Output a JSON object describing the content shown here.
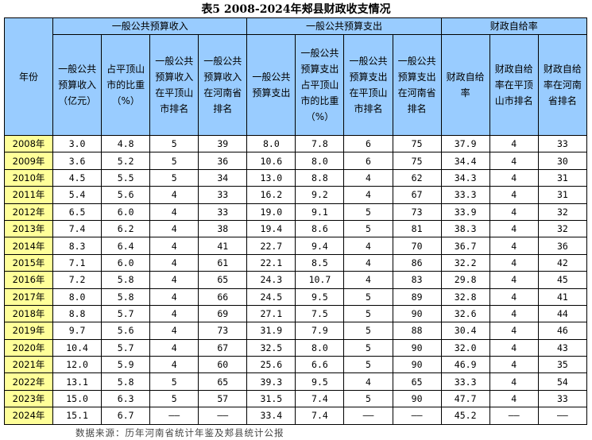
{
  "title": "表5 2008-2024年郏县财政收支情况",
  "header": {
    "year": "年份",
    "groups": [
      "一般公共预算收入",
      "一般公共预算支出",
      "财政自给率"
    ],
    "columns": [
      "一般公共预算收入（亿元）",
      "占平顶山市的比重（%）",
      "一般公共预算收入在平顶山市排名",
      "一般公共预算收入在河南省排名",
      "一般公共预算支出",
      "一般公共预算支出占平顶山市的比重（%）",
      "一般公共预算支出在平顶山市排名",
      "一般公共预算支出在河南省排名",
      "财政自给率",
      "财政自给率在平顶山市排名",
      "财政自给率在河南省排名"
    ]
  },
  "rows": [
    [
      "2008年",
      "3.0",
      "4.8",
      "5",
      "39",
      "8.0",
      "7.8",
      "6",
      "75",
      "37.9",
      "4",
      "33"
    ],
    [
      "2009年",
      "3.6",
      "5.2",
      "5",
      "36",
      "10.6",
      "8.0",
      "6",
      "75",
      "34.4",
      "4",
      "30"
    ],
    [
      "2010年",
      "4.5",
      "5.5",
      "5",
      "34",
      "13.0",
      "8.8",
      "4",
      "62",
      "34.3",
      "4",
      "31"
    ],
    [
      "2011年",
      "5.4",
      "5.6",
      "4",
      "33",
      "16.2",
      "9.2",
      "4",
      "67",
      "33.3",
      "4",
      "31"
    ],
    [
      "2012年",
      "6.5",
      "6.0",
      "4",
      "33",
      "19.0",
      "9.1",
      "5",
      "73",
      "33.9",
      "4",
      "32"
    ],
    [
      "2013年",
      "7.4",
      "6.2",
      "4",
      "38",
      "19.4",
      "8.6",
      "5",
      "81",
      "38.3",
      "4",
      "32"
    ],
    [
      "2014年",
      "8.3",
      "6.4",
      "4",
      "41",
      "22.7",
      "9.4",
      "4",
      "70",
      "36.7",
      "4",
      "36"
    ],
    [
      "2015年",
      "7.1",
      "6.0",
      "4",
      "61",
      "22.1",
      "8.5",
      "4",
      "86",
      "32.2",
      "4",
      "42"
    ],
    [
      "2016年",
      "7.2",
      "5.8",
      "4",
      "65",
      "24.3",
      "10.7",
      "4",
      "83",
      "29.8",
      "4",
      "45"
    ],
    [
      "2017年",
      "8.0",
      "5.8",
      "4",
      "66",
      "24.5",
      "9.5",
      "5",
      "89",
      "32.8",
      "4",
      "41"
    ],
    [
      "2018年",
      "8.8",
      "5.7",
      "4",
      "69",
      "27.1",
      "7.5",
      "5",
      "90",
      "32.6",
      "4",
      "44"
    ],
    [
      "2019年",
      "9.7",
      "5.6",
      "4",
      "73",
      "31.9",
      "7.9",
      "5",
      "88",
      "30.4",
      "4",
      "46"
    ],
    [
      "2020年",
      "10.4",
      "5.7",
      "4",
      "67",
      "32.5",
      "8.0",
      "5",
      "90",
      "32.0",
      "4",
      "43"
    ],
    [
      "2021年",
      "12.0",
      "5.9",
      "4",
      "60",
      "25.6",
      "6.6",
      "5",
      "90",
      "46.9",
      "4",
      "35"
    ],
    [
      "2022年",
      "13.1",
      "5.8",
      "5",
      "65",
      "39.3",
      "9.5",
      "4",
      "65",
      "33.3",
      "4",
      "54"
    ],
    [
      "2023年",
      "15.0",
      "6.3",
      "5",
      "57",
      "31.5",
      "7.4",
      "5",
      "90",
      "47.7",
      "4",
      "33"
    ],
    [
      "2024年",
      "15.1",
      "6.7",
      "——",
      "——",
      "33.4",
      "7.4",
      "——",
      "——",
      "45.2",
      "——",
      "——"
    ]
  ],
  "footer": "数据来源：历年河南省统计年鉴及郏县统计公报"
}
